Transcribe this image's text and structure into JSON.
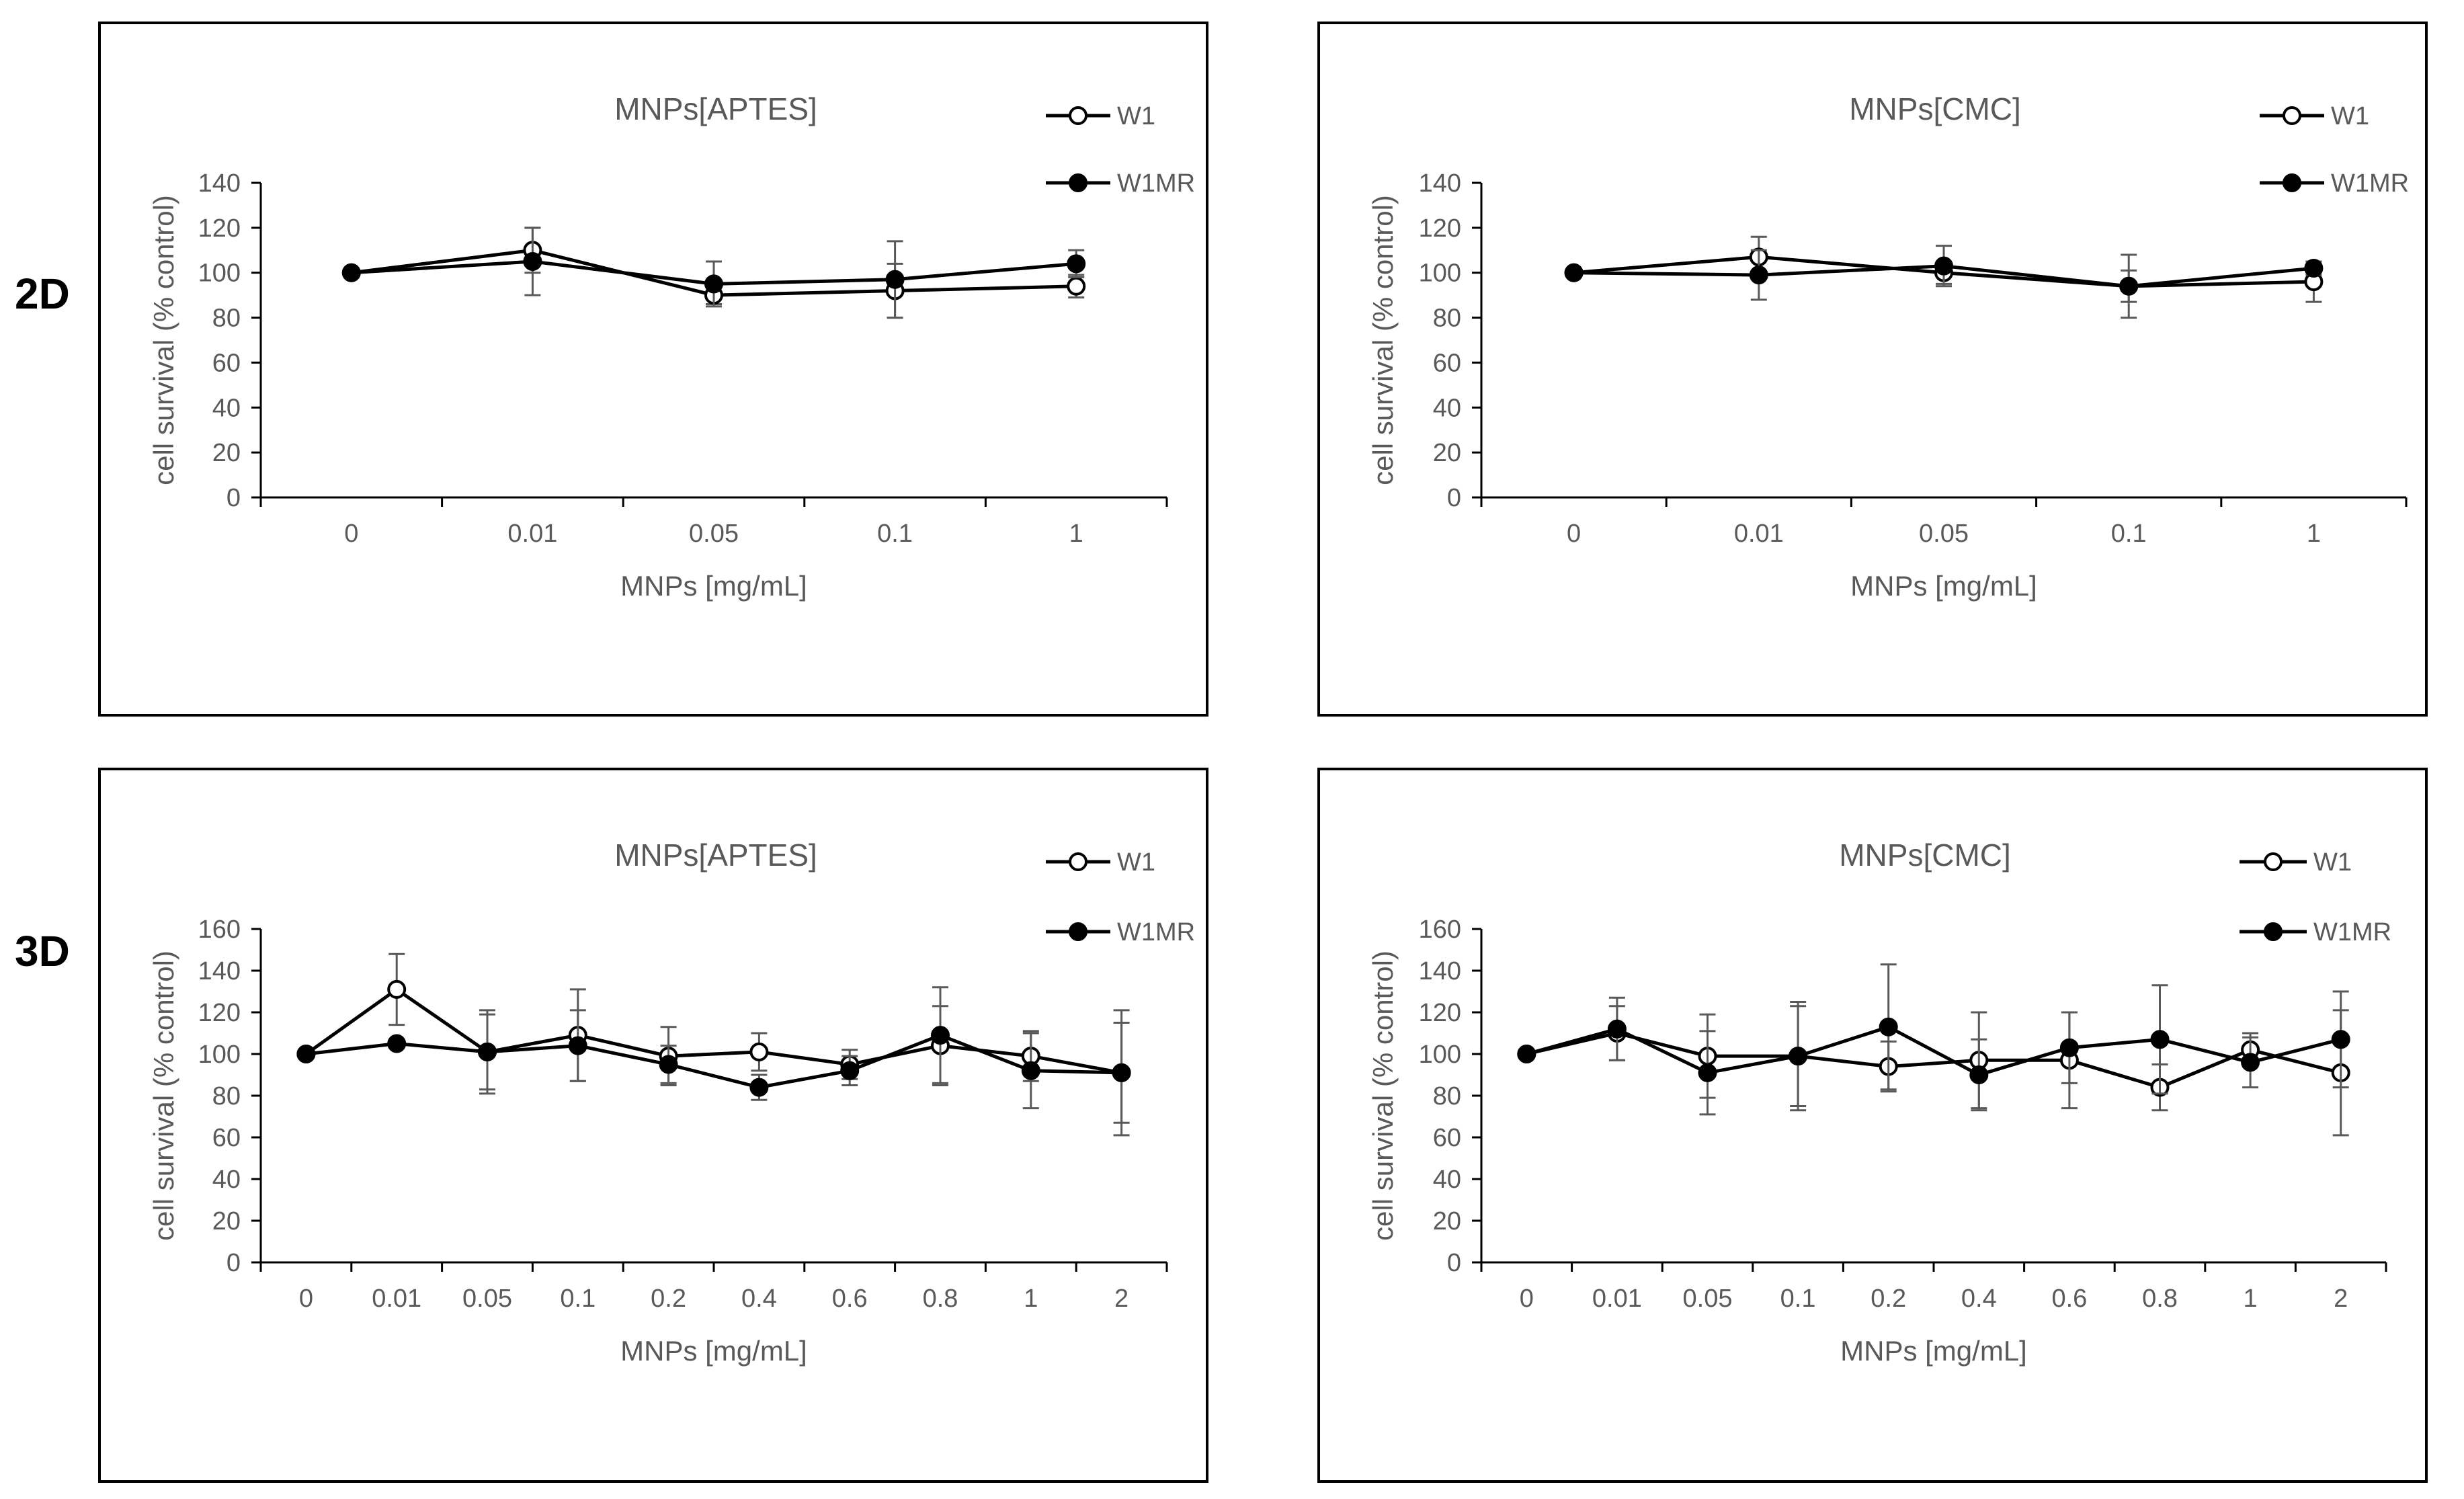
{
  "rows": {
    "top_label": "2D",
    "bottom_label": "3D"
  },
  "colors": {
    "line": "#000000",
    "axis": "#000000",
    "text": "#595959",
    "error": "#595959"
  },
  "chart_data": [
    {
      "type": "line",
      "title": "MNPs[APTES]",
      "xlabel": "MNPs [mg/mL]",
      "ylabel": "cell survival (% control)",
      "categories": [
        "0",
        "0.01",
        "0.05",
        "0.1",
        "1"
      ],
      "ylim": [
        0,
        140
      ],
      "yticks": [
        0,
        20,
        40,
        60,
        80,
        100,
        120,
        140
      ],
      "legend_position": "top-right",
      "series": [
        {
          "name": "W1",
          "marker": "open-circle",
          "values": [
            100,
            110,
            90,
            92,
            94
          ],
          "errors": [
            0,
            10,
            4,
            12,
            5
          ]
        },
        {
          "name": "W1MR",
          "marker": "filled-circle",
          "values": [
            100,
            105,
            95,
            97,
            104
          ],
          "errors": [
            0,
            15,
            10,
            17,
            6
          ]
        }
      ]
    },
    {
      "type": "line",
      "title": "MNPs[CMC]",
      "xlabel": "MNPs [mg/mL]",
      "ylabel": "cell survival (% control)",
      "categories": [
        "0",
        "0.01",
        "0.05",
        "0.1",
        "1"
      ],
      "ylim": [
        0,
        140
      ],
      "yticks": [
        0,
        20,
        40,
        60,
        80,
        100,
        120,
        140
      ],
      "legend_position": "top-right",
      "series": [
        {
          "name": "W1",
          "marker": "open-circle",
          "values": [
            100,
            107,
            100,
            94,
            96
          ],
          "errors": [
            0,
            9,
            5,
            14,
            9
          ]
        },
        {
          "name": "W1MR",
          "marker": "filled-circle",
          "values": [
            100,
            99,
            103,
            94,
            102
          ],
          "errors": [
            0,
            11,
            9,
            7,
            3
          ]
        }
      ]
    },
    {
      "type": "line",
      "title": "MNPs[APTES]",
      "xlabel": "MNPs [mg/mL]",
      "ylabel": "cell survival (% control)",
      "categories": [
        "0",
        "0.01",
        "0.05",
        "0.1",
        "0.2",
        "0.4",
        "0.6",
        "0.8",
        "1",
        "2"
      ],
      "ylim": [
        0,
        160
      ],
      "yticks": [
        0,
        20,
        40,
        60,
        80,
        100,
        120,
        140,
        160
      ],
      "legend_position": "top-right",
      "series": [
        {
          "name": "W1",
          "marker": "open-circle",
          "values": [
            100,
            131,
            101,
            109,
            99,
            101,
            95,
            104,
            99,
            91
          ],
          "errors": [
            0,
            17,
            20,
            22,
            14,
            9,
            7,
            19,
            12,
            24
          ]
        },
        {
          "name": "W1MR",
          "marker": "filled-circle",
          "values": [
            100,
            105,
            101,
            104,
            95,
            84,
            92,
            109,
            92,
            91
          ],
          "errors": [
            0,
            0,
            18,
            17,
            9,
            6,
            7,
            23,
            18,
            30
          ]
        }
      ]
    },
    {
      "type": "line",
      "title": "MNPs[CMC]",
      "xlabel": "MNPs [mg/mL]",
      "ylabel": "cell survival (% control)",
      "categories": [
        "0",
        "0.01",
        "0.05",
        "0.1",
        "0.2",
        "0.4",
        "0.6",
        "0.8",
        "1",
        "2"
      ],
      "ylim": [
        0,
        160
      ],
      "yticks": [
        0,
        20,
        40,
        60,
        80,
        100,
        120,
        140,
        160
      ],
      "legend_position": "top-right",
      "series": [
        {
          "name": "W1",
          "marker": "open-circle",
          "values": [
            100,
            110,
            99,
            99,
            94,
            97,
            97,
            84,
            102,
            91
          ],
          "errors": [
            0,
            13,
            20,
            24,
            12,
            23,
            23,
            11,
            8,
            30
          ]
        },
        {
          "name": "W1MR",
          "marker": "filled-circle",
          "values": [
            100,
            112,
            91,
            99,
            113,
            90,
            103,
            107,
            96,
            107
          ],
          "errors": [
            0,
            15,
            20,
            26,
            30,
            17,
            17,
            26,
            12,
            23
          ]
        }
      ]
    }
  ]
}
